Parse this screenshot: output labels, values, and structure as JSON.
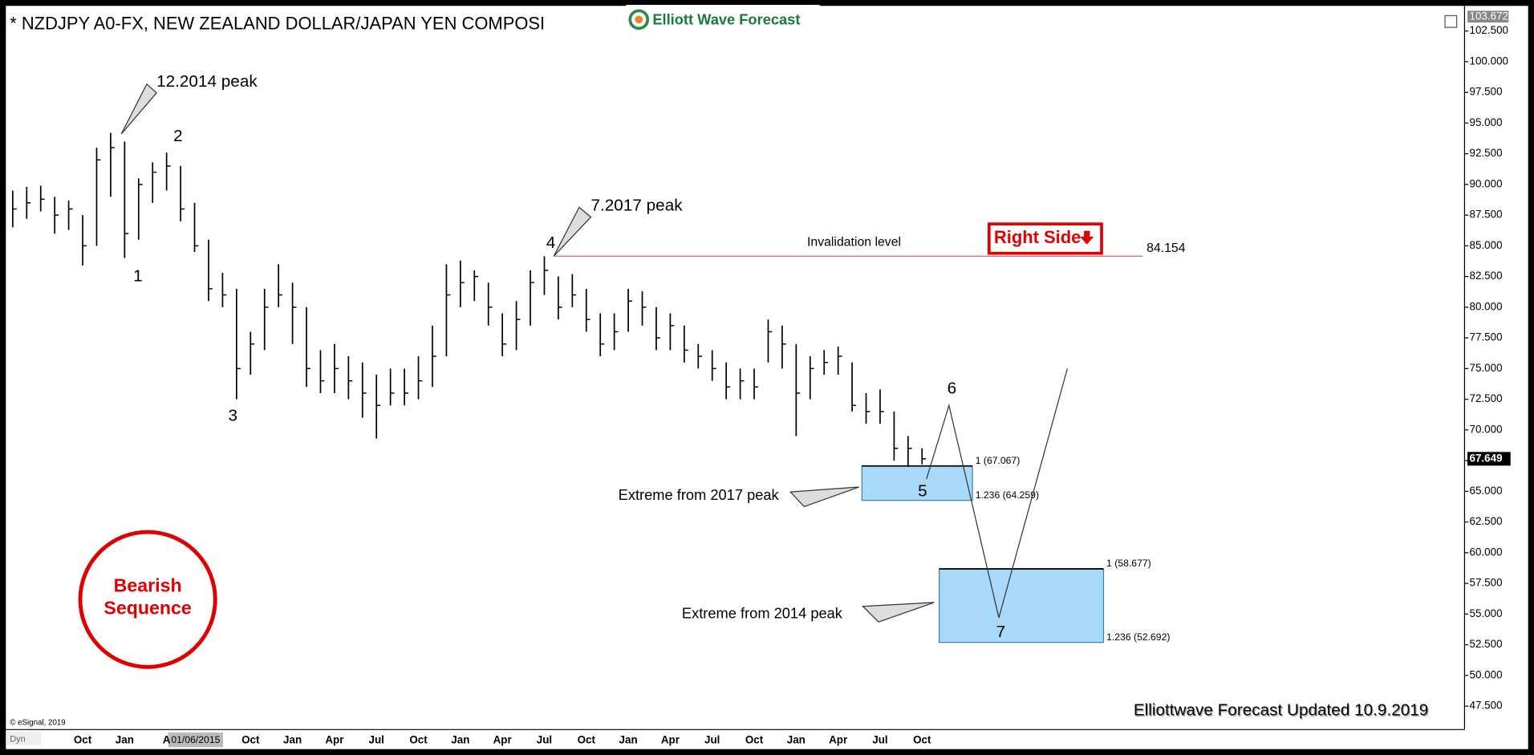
{
  "chart_data": {
    "type": "ohlc",
    "title": "* NZDJPY A0-FX, NEW ZEALAND DOLLAR/JAPAN YEN COMPOSI",
    "logo": "Elliott Wave Forecast",
    "categories": [
      null,
      null,
      null,
      null,
      null,
      "Oct",
      null,
      null,
      "Jan",
      null,
      null,
      "A",
      null,
      null,
      null,
      null,
      null,
      "Oct",
      null,
      null,
      "Jan",
      null,
      null,
      "Apr",
      null,
      null,
      "Jul",
      null,
      null,
      "Oct",
      null,
      null,
      "Jan",
      null,
      null,
      "Apr",
      null,
      null,
      "Jul",
      null,
      null,
      "Oct",
      null,
      null,
      "Jan",
      null,
      null,
      "Apr",
      null,
      null,
      "Jul",
      null,
      null,
      "Oct",
      null,
      null,
      "Jan",
      null,
      null,
      "Apr",
      null,
      null,
      "Jul",
      null,
      null,
      "Oct"
    ],
    "bars": {
      "high": [
        89.5,
        89.8,
        89.9,
        89.0,
        88.7,
        87.5,
        93.0,
        94.2,
        93.5,
        90.5,
        91.8,
        92.6,
        91.5,
        88.5,
        85.5,
        82.8,
        81.5,
        78.0,
        81.5,
        83.5,
        82.0,
        80.0,
        76.5,
        77.0,
        76.0,
        75.5,
        74.5,
        75.0,
        75.0,
        76.0,
        78.5,
        83.5,
        83.8,
        83.0,
        82.0,
        79.5,
        80.5,
        83.0,
        84.15,
        82.5,
        82.7,
        81.5,
        79.5,
        79.5,
        81.5,
        81.3,
        80.0,
        79.5,
        78.5,
        77.0,
        76.5,
        75.5,
        75.0,
        75.0,
        79.0,
        78.5,
        77.0,
        76.0,
        76.5,
        76.8,
        75.5,
        73.0,
        73.3,
        71.5,
        69.5,
        68.5
      ],
      "low": [
        86.5,
        87.2,
        87.8,
        86.0,
        86.3,
        83.4,
        85.0,
        89.0,
        84.0,
        85.5,
        88.5,
        89.5,
        87.0,
        84.5,
        80.5,
        80.0,
        72.5,
        74.5,
        76.5,
        80.0,
        77.0,
        73.5,
        73.0,
        73.0,
        72.5,
        71.0,
        69.3,
        72.0,
        72.0,
        72.5,
        73.5,
        76.0,
        80.0,
        80.5,
        78.5,
        76.0,
        76.5,
        78.5,
        81.0,
        79.0,
        80.0,
        78.0,
        76.0,
        76.5,
        78.0,
        78.5,
        76.5,
        76.5,
        75.5,
        75.0,
        74.0,
        72.5,
        72.5,
        72.5,
        75.5,
        75.0,
        69.5,
        72.5,
        74.5,
        74.5,
        71.5,
        70.5,
        70.5,
        67.5,
        67.0,
        67.2
      ],
      "close": [
        88,
        88.5,
        88.8,
        87.5,
        88,
        85,
        92,
        93,
        86,
        90,
        91,
        91.5,
        88,
        85,
        81.5,
        81,
        75,
        77,
        80,
        81,
        80,
        75,
        74,
        75,
        74,
        73,
        72,
        73,
        73,
        74,
        76,
        81,
        82,
        82.5,
        80,
        77,
        79,
        82,
        83,
        80,
        81,
        79,
        77,
        78,
        80.5,
        80,
        77.5,
        78.5,
        76.5,
        76,
        75,
        73.5,
        74,
        73.5,
        78,
        77,
        73,
        75,
        75.5,
        76,
        72,
        71.5,
        71.5,
        68.5,
        68.5,
        67.65
      ],
      "color": "#000000"
    },
    "ylim": [
      45.67,
      103.672
    ],
    "yticks": [
      {
        "value": 47.5,
        "label": "47.500"
      },
      {
        "value": 50,
        "label": "50.000"
      },
      {
        "value": 52.5,
        "label": "52.500"
      },
      {
        "value": 55,
        "label": "55.000"
      },
      {
        "value": 57.5,
        "label": "57.500"
      },
      {
        "value": 60,
        "label": "60.000"
      },
      {
        "value": 62.5,
        "label": "62.500"
      },
      {
        "value": 65,
        "label": "65.000"
      },
      {
        "value": 67.5,
        "label": "67.500"
      },
      {
        "value": 70,
        "label": "70.000"
      },
      {
        "value": 72.5,
        "label": "72.500"
      },
      {
        "value": 75,
        "label": "75.000"
      },
      {
        "value": 77.5,
        "label": "77.500"
      },
      {
        "value": 80,
        "label": "80.000"
      },
      {
        "value": 82.5,
        "label": "82.500"
      },
      {
        "value": 85,
        "label": "85.000"
      },
      {
        "value": 87.5,
        "label": "87.500"
      },
      {
        "value": 90,
        "label": "90.000"
      },
      {
        "value": 92.5,
        "label": "92.500"
      },
      {
        "value": 95,
        "label": "95.000"
      },
      {
        "value": 97.5,
        "label": "97.500"
      },
      {
        "value": 100,
        "label": "100.000"
      },
      {
        "value": 102.5,
        "label": "102.500"
      }
    ],
    "last_price": 67.649,
    "cursor_date": "01/06/2015",
    "invalidation": {
      "label": "Invalidation level",
      "value": 84.154,
      "color": "#e05050"
    },
    "fib_zones": [
      {
        "top": {
          "value": 67.067,
          "label": "1 (67.067)"
        },
        "bottom": {
          "value": 64.259,
          "label": "1.236 (64.259)"
        },
        "color": "#a9d9f9"
      },
      {
        "top": {
          "value": 58.677,
          "label": "1 (58.677)"
        },
        "bottom": {
          "value": 52.692,
          "label": "1.236 (52.692)"
        },
        "color": "#a9d9f9"
      }
    ],
    "projection": [
      66.0,
      72.0,
      54.7,
      75.0
    ],
    "wave_labels": [
      "1",
      "2",
      "3",
      "4",
      "5",
      "6",
      "7"
    ],
    "annotations": {
      "peak_2014": "12.2014 peak",
      "peak_2017": "7.2017 peak",
      "extreme_2017": "Extreme from 2017 peak",
      "extreme_2014": "Extreme from 2014 peak",
      "right_side": "Right Side",
      "bearish": [
        "Bearish",
        "Sequence"
      ],
      "updated": "Elliottwave Forecast Updated 10.9.2019",
      "copyright": "© eSignal, 2019",
      "dyn": "Dyn"
    }
  }
}
